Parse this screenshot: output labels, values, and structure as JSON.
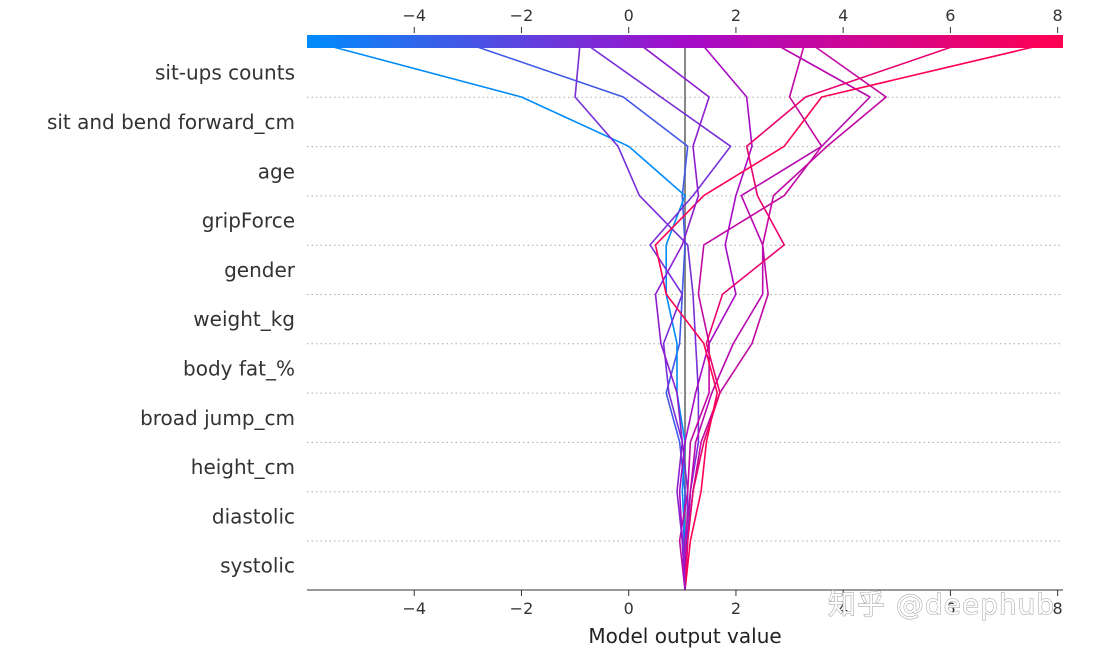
{
  "chart_data": {
    "type": "line",
    "xlabel": "Model output value",
    "xlim": [
      -6,
      8.1
    ],
    "x_ticks": [
      -4,
      -2,
      0,
      2,
      4,
      6,
      8
    ],
    "x_tick_labels": [
      "−4",
      "−2",
      "0",
      "2",
      "4",
      "6",
      "8"
    ],
    "base_value": 1.05,
    "features": [
      "sit-ups counts",
      "sit and bend forward_cm",
      "age",
      "gripForce",
      "gender",
      "weight_kg",
      "body fat_%",
      "broad jump_cm",
      "height_cm",
      "diastolic",
      "systolic"
    ],
    "colorbar": {
      "min": -6,
      "max": 8.1,
      "low_color": "#008bfb",
      "high_color": "#ff0052"
    },
    "series": [
      {
        "values": [
          1.05,
          1.02,
          1.05,
          0.95,
          0.7,
          0.95,
          1.0,
          1.05,
          1.0,
          1.1,
          -0.1,
          -3.2
        ]
      },
      {
        "values": [
          1.05,
          1.05,
          1.0,
          1.05,
          0.9,
          0.9,
          0.7,
          0.7,
          1.05,
          0.0,
          -2.0,
          -6.0
        ]
      },
      {
        "values": [
          1.05,
          1.08,
          1.1,
          1.0,
          0.75,
          0.65,
          1.0,
          0.4,
          1.2,
          1.9,
          0.6,
          -0.9
        ]
      },
      {
        "values": [
          1.05,
          1.1,
          1.15,
          1.3,
          1.3,
          1.25,
          1.2,
          1.1,
          0.2,
          -0.2,
          -1.0,
          -0.9
        ]
      },
      {
        "values": [
          1.05,
          1.0,
          0.95,
          1.05,
          1.25,
          1.5,
          2.0,
          1.8,
          2.0,
          2.3,
          2.2,
          1.3
        ]
      },
      {
        "values": [
          1.05,
          1.1,
          1.2,
          1.35,
          1.7,
          2.3,
          2.6,
          2.5,
          2.7,
          3.7,
          4.8,
          3.3
        ]
      },
      {
        "values": [
          1.05,
          1.05,
          1.15,
          1.25,
          1.55,
          1.95,
          2.5,
          2.5,
          2.1,
          3.6,
          4.5,
          2.6
        ]
      },
      {
        "values": [
          1.05,
          0.95,
          1.1,
          1.15,
          1.5,
          1.5,
          1.3,
          1.4,
          2.9,
          3.6,
          3.0,
          3.3
        ]
      },
      {
        "values": [
          1.05,
          1.1,
          1.2,
          1.4,
          1.7,
          1.45,
          1.75,
          2.9,
          2.4,
          2.2,
          3.3,
          6.4
        ]
      },
      {
        "values": [
          1.05,
          1.15,
          1.35,
          1.45,
          1.65,
          1.4,
          0.7,
          0.5,
          1.4,
          2.9,
          3.6,
          8.1
        ]
      },
      {
        "values": [
          1.05,
          1.0,
          0.9,
          1.0,
          0.9,
          0.6,
          0.5,
          1.0,
          1.3,
          1.2,
          1.5,
          0.1
        ]
      }
    ]
  },
  "watermark": {
    "text": "知乎 @deephub"
  }
}
